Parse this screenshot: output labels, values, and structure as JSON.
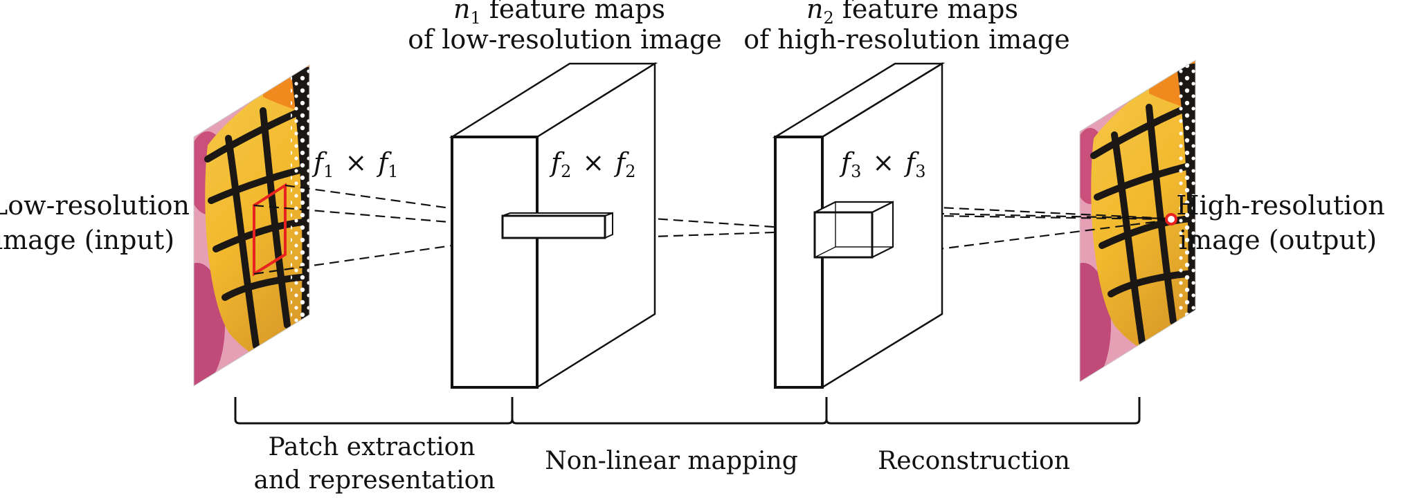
{
  "diagram": {
    "input_label": [
      "Low-resolution",
      "image (input)"
    ],
    "output_label": [
      "High-resolution",
      "image (output)"
    ],
    "layer1_caption": [
      {
        "var": "n",
        "sub": "1",
        "text": " feature maps"
      },
      {
        "text": "of low-resolution image"
      }
    ],
    "layer2_caption": [
      {
        "var": "n",
        "sub": "2",
        "text": " feature maps"
      },
      {
        "text": "of high-resolution image"
      }
    ],
    "filter1": {
      "var": "f",
      "sub": "1",
      "times": "×"
    },
    "filter2": {
      "var": "f",
      "sub": "2",
      "times": "×"
    },
    "filter3": {
      "var": "f",
      "sub": "3",
      "times": "×"
    },
    "stages": [
      [
        "Patch extraction",
        "and representation"
      ],
      [
        "Non-linear mapping"
      ],
      [
        "Reconstruction"
      ]
    ],
    "colors": {
      "stroke": "#111111",
      "patch_highlight": "#e8231f",
      "wing_orange": "#f0a030",
      "wing_yellow": "#f2c232",
      "wing_vein": "#1b1714",
      "flower_pink": "#c8507a"
    }
  }
}
